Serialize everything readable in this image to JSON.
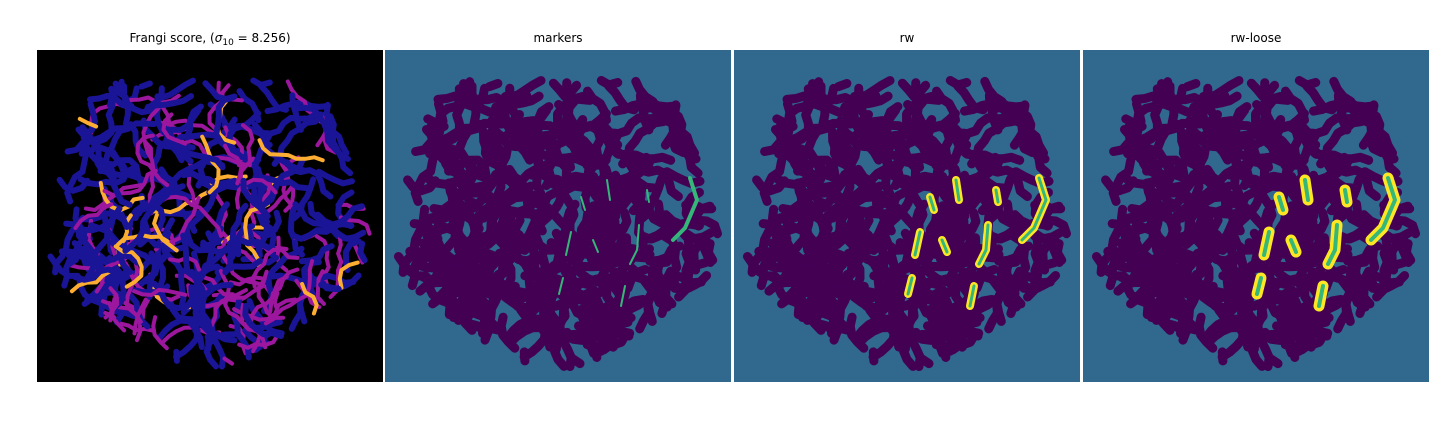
{
  "panels": [
    {
      "id": "frangi",
      "title_prefix": "Frangi score, (",
      "title_sigma": "σ",
      "title_sub": "10",
      "title_suffix": " = 8.256)",
      "background": "#000000",
      "colormap": "plasma"
    },
    {
      "id": "markers",
      "title": "markers",
      "background": "#31688e",
      "colormap": "viridis"
    },
    {
      "id": "rw",
      "title": "rw",
      "background": "#31688e",
      "colormap": "viridis"
    },
    {
      "id": "rw-loose",
      "title": "rw-loose",
      "background": "#31688e",
      "colormap": "viridis"
    }
  ],
  "colors": {
    "frangi_bg": "#000000",
    "frangi_low": "#1a1496",
    "frangi_mid": "#9c179e",
    "frangi_high": "#fdae32",
    "region_bg": "#31688e",
    "region_dark": "#440154",
    "label_green": "#35b779",
    "label_yellow": "#fde725"
  }
}
